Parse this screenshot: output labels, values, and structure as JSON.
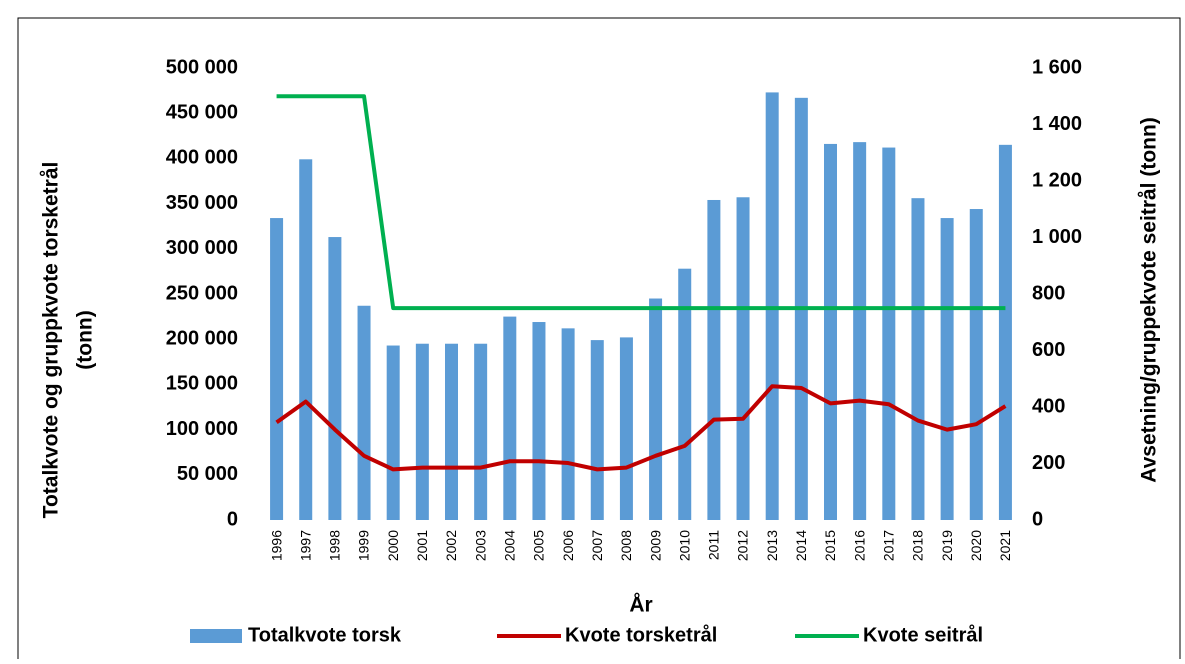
{
  "chart_data": {
    "type": "bar",
    "x_label": "År",
    "y_label": [
      "Totalkvote og gruppkvote torsketrål",
      "(tonn)"
    ],
    "y2_label": "Avsetning/gruppekvote seitrål (tonn)",
    "categories": [
      "1996",
      "1997",
      "1998",
      "1999",
      "2000",
      "2001",
      "2002",
      "2003",
      "2004",
      "2005",
      "2006",
      "2007",
      "2008",
      "2009",
      "2010",
      "2011",
      "2012",
      "2013",
      "2014",
      "2015",
      "2016",
      "2017",
      "2018",
      "2019",
      "2020",
      "2021"
    ],
    "series": [
      {
        "name": "Totalkvote torsk",
        "type": "bar",
        "color": "#5b9bd5",
        "values": [
          334000,
          399000,
          313000,
          237000,
          193000,
          195000,
          195000,
          195000,
          225000,
          219000,
          212000,
          199000,
          202000,
          245000,
          278000,
          354000,
          357000,
          473000,
          467000,
          416000,
          418000,
          412000,
          356000,
          334000,
          344000,
          415000
        ]
      },
      {
        "name": "Kvote torsketrål",
        "type": "line",
        "color": "#c00000",
        "values": [
          108000,
          131000,
          100000,
          71000,
          56000,
          58000,
          58000,
          58000,
          65000,
          65000,
          63000,
          56000,
          58000,
          71000,
          82000,
          111000,
          112000,
          148000,
          146000,
          129000,
          132000,
          128000,
          110000,
          100000,
          106000,
          126000
        ]
      },
      {
        "name": "Kvote seitrål",
        "type": "line",
        "color": "#00b050",
        "axis": "y2",
        "values": [
          1500,
          1500,
          1500,
          1500,
          750,
          750,
          750,
          750,
          750,
          750,
          750,
          750,
          750,
          750,
          750,
          750,
          750,
          750,
          750,
          750,
          750,
          750,
          750,
          750,
          750,
          750
        ]
      }
    ],
    "ylim": [
      0,
      500000
    ],
    "yticks": [
      0,
      {
        "value": 50000,
        "label": "50 000"
      },
      {
        "value": 100000,
        "label": "100 000"
      },
      {
        "value": 150000,
        "label": "150 000"
      },
      {
        "value": 200000,
        "label": "200 000"
      },
      {
        "value": 250000,
        "label": "250 000"
      },
      {
        "value": 300000,
        "label": "300 000"
      },
      {
        "value": 350000,
        "label": "350 000"
      },
      {
        "value": 400000,
        "label": "400 000"
      },
      {
        "value": 450000,
        "label": "450 000"
      },
      {
        "value": 500000,
        "label": "500 000"
      }
    ],
    "y2lim": [
      0,
      1600
    ],
    "y2ticks": [
      0,
      200,
      400,
      600,
      800,
      {
        "value": 1000,
        "label": "1 000"
      },
      {
        "value": 1200,
        "label": "1 200"
      },
      {
        "value": 1400,
        "label": "1 400"
      },
      {
        "value": 1600,
        "label": "1 600"
      }
    ],
    "grid": false,
    "legend": "bottom"
  }
}
